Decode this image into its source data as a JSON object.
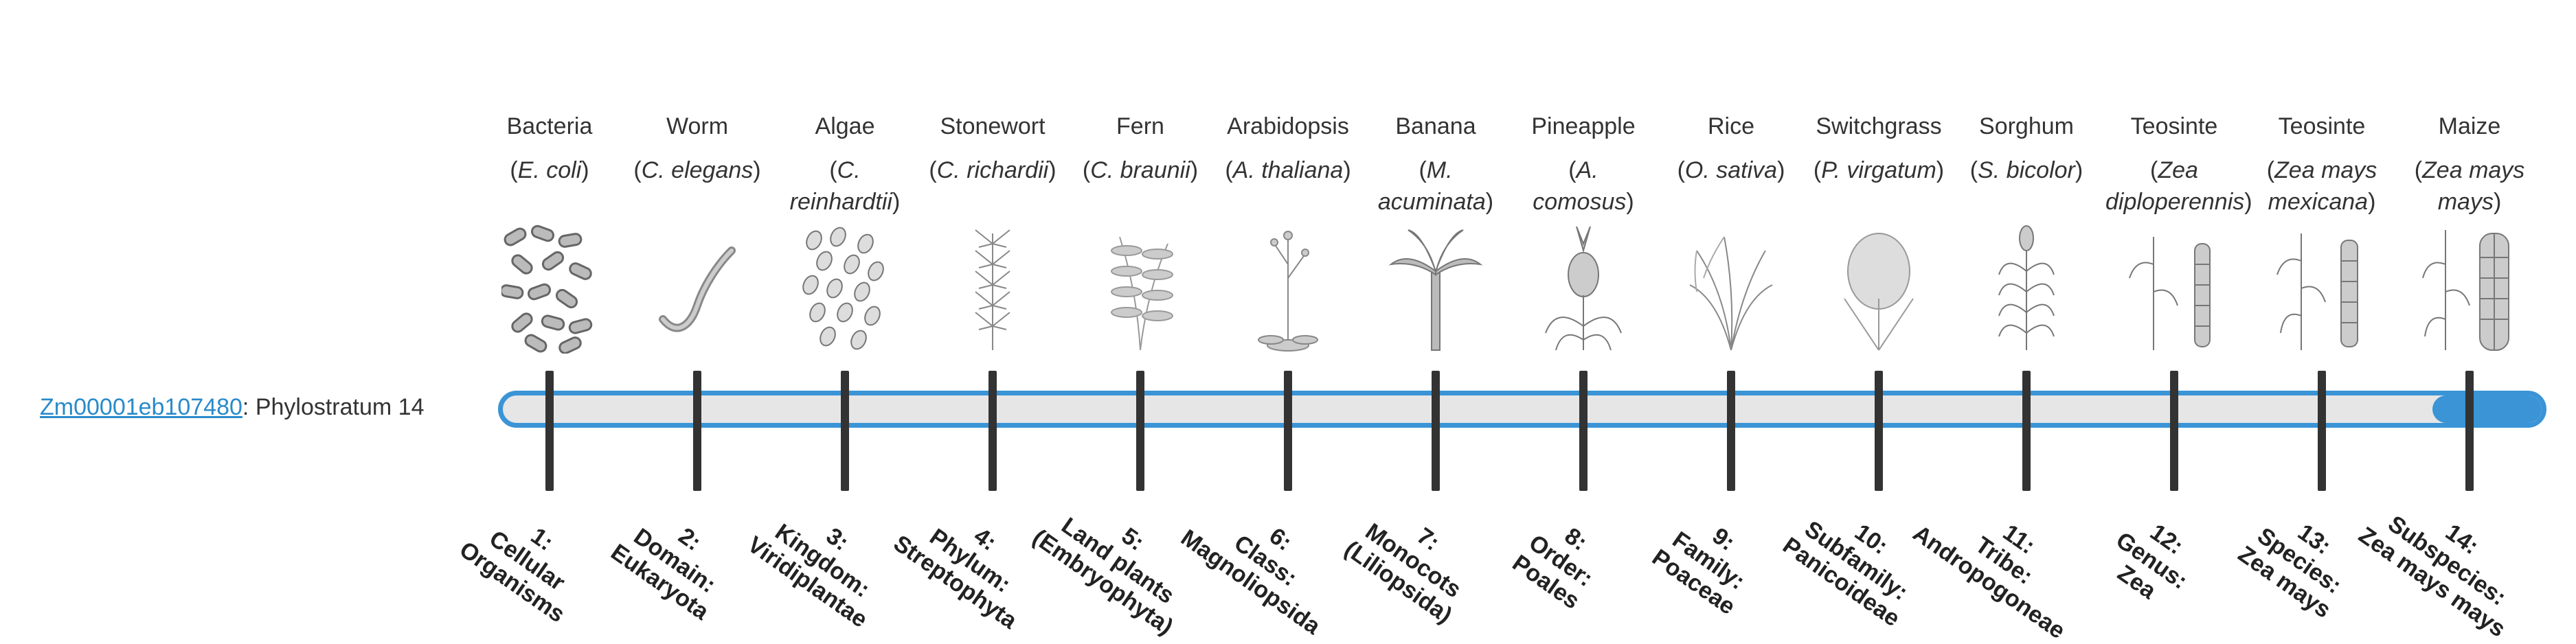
{
  "gene": {
    "id": "Zm00001eb107480",
    "suffix": ": Phylostratum 14"
  },
  "current_stratum": 14,
  "total_strata": 14,
  "bar_color": "#3a94d6",
  "organisms": [
    {
      "common": "Bacteria",
      "sci_pre": "(",
      "sci_italic": "E. coli",
      "sci_post": ")",
      "stage_num": "1:",
      "stage_name": "Cellular Organisms",
      "icon": "bacteria-illustration"
    },
    {
      "common": "Worm",
      "sci_pre": "(",
      "sci_italic": "C. elegans",
      "sci_post": ")",
      "stage_num": "2:",
      "stage_name": "Domain: Eukaryota",
      "icon": "worm-illustration"
    },
    {
      "common": "Algae",
      "sci_pre": "(",
      "sci_italic": "C. reinhardtii",
      "sci_post": ")",
      "stage_num": "3:",
      "stage_name": "Kingdom: Viridiplantae",
      "icon": "algae-illustration"
    },
    {
      "common": "Stonewort",
      "sci_pre": "(",
      "sci_italic": "C. richardii",
      "sci_post": ")",
      "stage_num": "4:",
      "stage_name": "Phylum: Streptophyta",
      "icon": "stonewort-illustration"
    },
    {
      "common": "Fern",
      "sci_pre": "(",
      "sci_italic": "C. braunii",
      "sci_post": ")",
      "stage_num": "5:",
      "stage_name": "Land plants (Embryophyta)",
      "icon": "fern-illustration"
    },
    {
      "common": "Arabidopsis",
      "sci_pre": "(",
      "sci_italic": "A. thaliana",
      "sci_post": ")",
      "stage_num": "6:",
      "stage_name": "Class: Magnoliopsida",
      "icon": "arabidopsis-illustration"
    },
    {
      "common": "Banana",
      "sci_pre": "(",
      "sci_italic": "M. acuminata",
      "sci_post": ")",
      "stage_num": "7:",
      "stage_name": "Monocots (Liliopsida)",
      "icon": "banana-illustration"
    },
    {
      "common": "Pineapple",
      "sci_pre": "(",
      "sci_italic": "A. comosus",
      "sci_post": ")",
      "stage_num": "8:",
      "stage_name": "Order: Poales",
      "icon": "pineapple-illustration"
    },
    {
      "common": "Rice",
      "sci_pre": "(",
      "sci_italic": "O. sativa",
      "sci_post": ")",
      "stage_num": "9:",
      "stage_name": "Family: Poaceae",
      "icon": "rice-illustration"
    },
    {
      "common": "Switchgrass",
      "sci_pre": "(",
      "sci_italic": "P. virgatum",
      "sci_post": ")",
      "stage_num": "10:",
      "stage_name": "Subfamily: Panicoideae",
      "icon": "switchgrass-illustration"
    },
    {
      "common": "Sorghum",
      "sci_pre": "(",
      "sci_italic": "S. bicolor",
      "sci_post": ")",
      "stage_num": "11:",
      "stage_name": "Tribe: Andropogoneae",
      "icon": "sorghum-illustration"
    },
    {
      "common": "Teosinte",
      "sci_pre": "(",
      "sci_italic": "Zea diploperennis",
      "sci_post": ")",
      "stage_num": "12:",
      "stage_name": "Genus: Zea",
      "icon": "teosinte-illustration"
    },
    {
      "common": "Teosinte",
      "sci_pre": "(",
      "sci_italic": "Zea mays mexicana",
      "sci_post": ")",
      "stage_num": "13:",
      "stage_name": "Species: Zea mays",
      "icon": "teosinte-mexicana-illustration"
    },
    {
      "common": "Maize",
      "sci_pre": "(",
      "sci_italic": "Zea mays mays",
      "sci_post": ")",
      "stage_num": "14:",
      "stage_name": "Subspecies: Zea mays mays",
      "icon": "maize-illustration"
    }
  ]
}
